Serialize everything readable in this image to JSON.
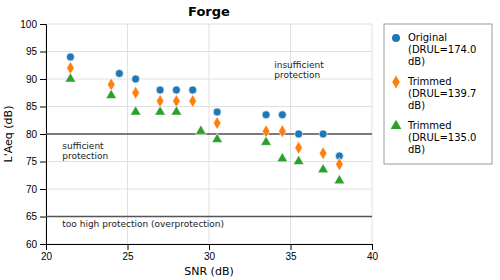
{
  "chart_data": {
    "type": "scatter",
    "title": "Forge",
    "x_label": "SNR (dB)",
    "y_label": "L'Aeq (dB)",
    "xlim": [
      20,
      40
    ],
    "ylim": [
      60,
      100
    ],
    "xticks": [
      20,
      25,
      30,
      35,
      40
    ],
    "yticks": [
      60,
      65,
      70,
      75,
      80,
      85,
      90,
      95,
      100
    ],
    "grid": true,
    "legend": "right",
    "series": [
      {
        "name": "Original\n(DRUL=174.0\ndB)",
        "marker": "circle",
        "x": [
          21.5,
          24.5,
          25.5,
          27.0,
          28.0,
          29.0,
          30.5,
          33.5,
          34.5,
          35.5,
          37.0,
          38.0
        ],
        "values": [
          94.0,
          91.0,
          90.0,
          88.0,
          88.0,
          88.0,
          84.0,
          83.5,
          83.5,
          80.0,
          80.0,
          76.0
        ]
      },
      {
        "name": "Trimmed\n(DRUL=139.7\ndB)",
        "marker": "diamond",
        "x": [
          21.5,
          24.0,
          25.5,
          27.0,
          28.0,
          29.0,
          30.5,
          33.5,
          34.5,
          35.5,
          37.0,
          38.0
        ],
        "values": [
          92.0,
          89.0,
          87.5,
          86.0,
          86.0,
          86.0,
          82.0,
          80.5,
          80.5,
          77.5,
          76.5,
          74.5
        ]
      },
      {
        "name": "Trimmed\n(DRUL=135.0\ndB)",
        "marker": "triangle",
        "x": [
          21.5,
          24.0,
          25.5,
          27.0,
          28.0,
          29.5,
          30.5,
          33.5,
          34.5,
          35.5,
          37.0,
          38.0
        ],
        "values": [
          90.0,
          87.0,
          84.0,
          84.0,
          84.0,
          80.5,
          79.0,
          78.5,
          75.5,
          75.0,
          73.5,
          71.5
        ]
      }
    ],
    "reference_lines": [
      80,
      65
    ],
    "annotations": [
      {
        "text": "insufficient\nprotection",
        "x": 34.0,
        "y": 93.5
      },
      {
        "text": "sufficient\nprotection",
        "x": 21.0,
        "y": 78.8
      },
      {
        "text": "too high protection (overprotection)",
        "x": 21.0,
        "y": 64.5
      }
    ]
  }
}
